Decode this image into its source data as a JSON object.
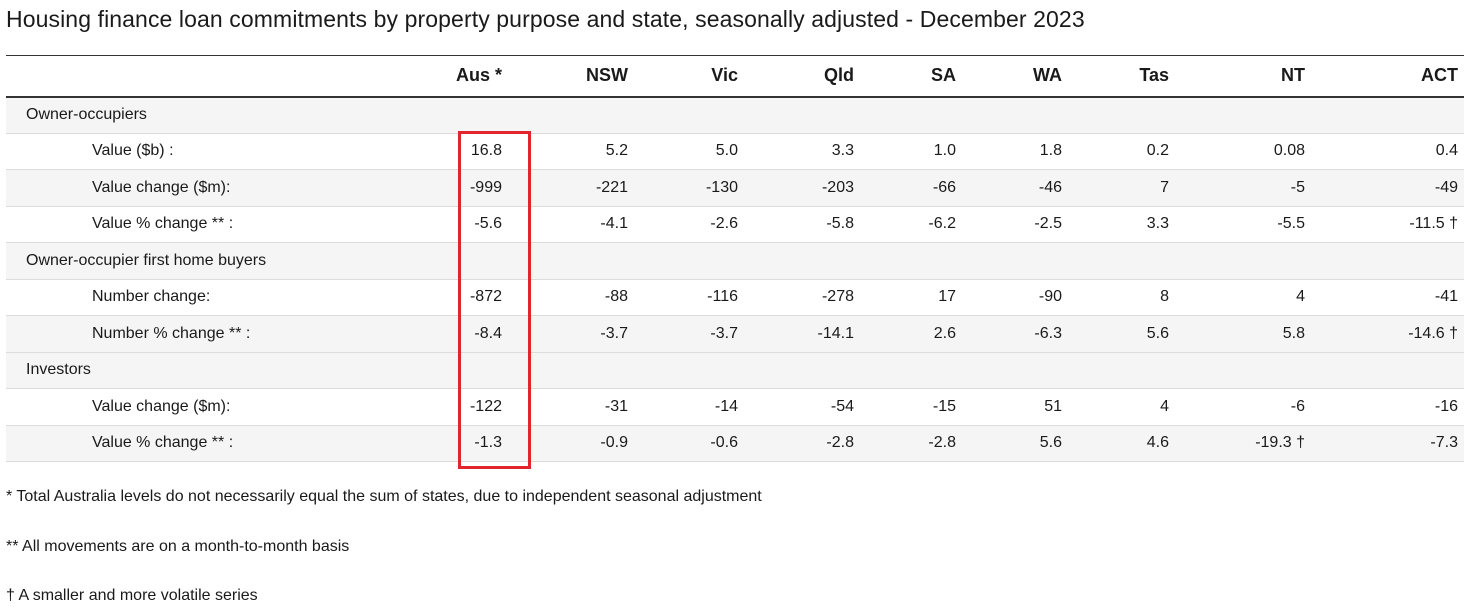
{
  "title": "Housing finance loan commitments by property purpose and state, seasonally adjusted - December 2023",
  "columns": [
    "",
    "Aus *",
    "NSW",
    "Vic",
    "Qld",
    "SA",
    "WA",
    "Tas",
    "NT",
    "ACT"
  ],
  "sections": [
    {
      "name": "Owner-occupiers",
      "rows": [
        {
          "label": "Value ($b) :",
          "values": [
            "16.8",
            "5.2",
            "5.0",
            "3.3",
            "1.0",
            "1.8",
            "0.2",
            "0.08",
            "0.4"
          ]
        },
        {
          "label": "Value change ($m):",
          "values": [
            "-999",
            "-221",
            "-130",
            "-203",
            "-66",
            "-46",
            "7",
            "-5",
            "-49"
          ]
        },
        {
          "label": "Value % change ** :",
          "values": [
            "-5.6",
            "-4.1",
            "-2.6",
            "-5.8",
            "-6.2",
            "-2.5",
            "3.3",
            "-5.5",
            "-11.5 †"
          ]
        }
      ]
    },
    {
      "name": "Owner-occupier first home buyers",
      "rows": [
        {
          "label": "Number change:",
          "values": [
            "-872",
            "-88",
            "-116",
            "-278",
            "17",
            "-90",
            "8",
            "4",
            "-41"
          ]
        },
        {
          "label": "Number % change ** :",
          "values": [
            "-8.4",
            "-3.7",
            "-3.7",
            "-14.1",
            "2.6",
            "-6.3",
            "5.6",
            "5.8",
            "-14.6 †"
          ]
        }
      ]
    },
    {
      "name": "Investors",
      "rows": [
        {
          "label": "Value change ($m):",
          "values": [
            "-122",
            "-31",
            "-14",
            "-54",
            "-15",
            "51",
            "4",
            "-6",
            "-16"
          ]
        },
        {
          "label": "Value % change ** :",
          "values": [
            "-1.3",
            "-0.9",
            "-0.6",
            "-2.8",
            "-2.8",
            "5.6",
            "4.6",
            "-19.3 †",
            "-7.3"
          ]
        }
      ]
    }
  ],
  "notes": [
    "* Total Australia levels do not necessarily equal the sum of states, due to independent seasonal adjustment",
    "** All movements are on a month-to-month basis",
    "† A smaller and more volatile series"
  ],
  "colors": {
    "highlight": "#e2252b",
    "section_bg": "#f5f5f5"
  }
}
